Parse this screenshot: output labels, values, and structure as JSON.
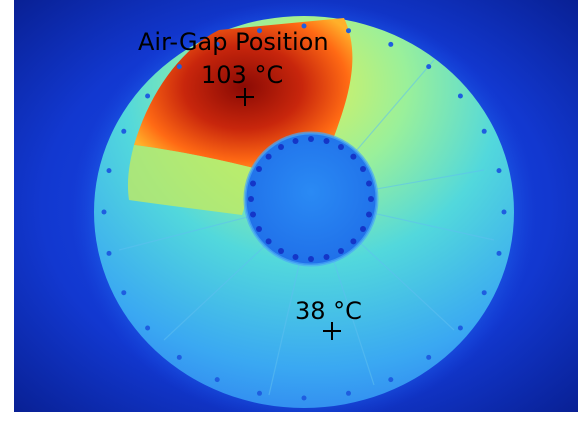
{
  "image": {
    "subject": "thermal-image-of-circular-stator",
    "colormap": [
      "#0a1f8c",
      "#1a56e0",
      "#2fa0ff",
      "#46d6e6",
      "#8af0a0",
      "#e6f04a",
      "#ff8a1a",
      "#e03410",
      "#8a0a04"
    ]
  },
  "annotations": {
    "title": "Air-Gap Position",
    "hot_label": "103 °C",
    "cool_label": "38 °C"
  }
}
